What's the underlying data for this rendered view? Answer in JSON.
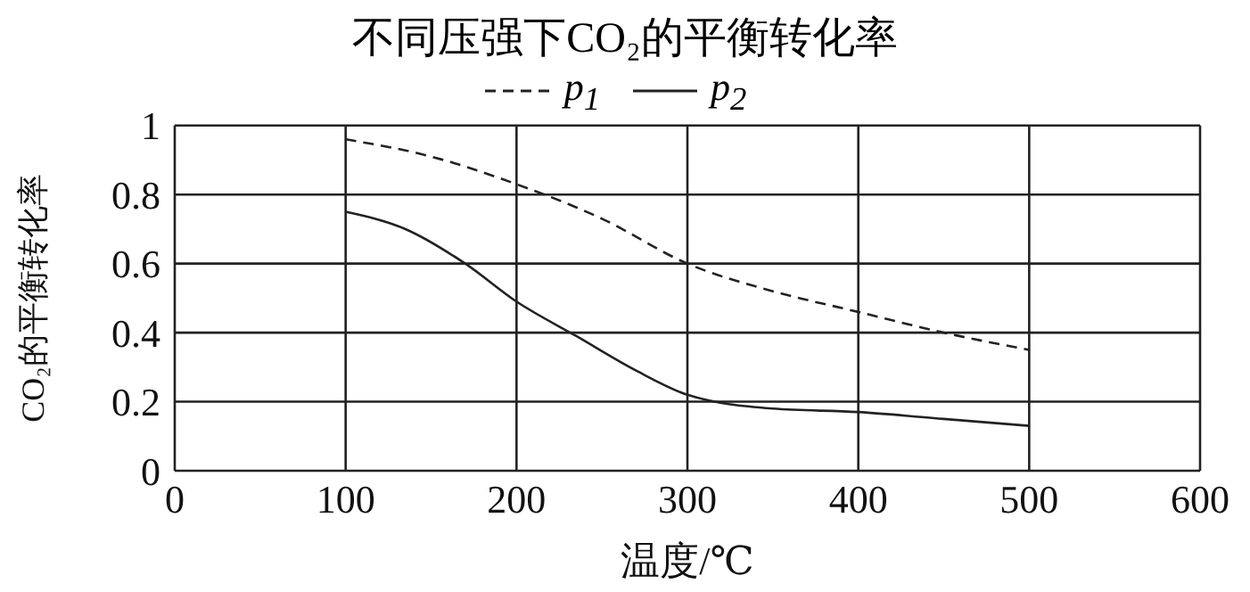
{
  "chart_data": {
    "type": "line",
    "title": "不同压强下CO₂的平衡转化率",
    "xlabel": "温度/℃",
    "ylabel": "CO₂的平衡转化率",
    "xlim": [
      0,
      600
    ],
    "xticks": [
      0,
      100,
      200,
      300,
      400,
      500,
      600
    ],
    "ylim": [
      0,
      1
    ],
    "yticks": [
      0,
      0.2,
      0.4,
      0.6,
      0.8,
      1
    ],
    "grid": true,
    "legend": "top",
    "marker": "none",
    "series": [
      {
        "name": "p$_{1}$",
        "color": "#222222",
        "line_style": "dashed",
        "x": [
          100,
          150,
          200,
          250,
          300,
          350,
          400,
          450,
          500
        ],
        "values": [
          0.96,
          0.91,
          0.83,
          0.73,
          0.6,
          0.52,
          0.46,
          0.4,
          0.35
        ]
      },
      {
        "name": "p$_{2}$",
        "color": "#222222",
        "line_style": "solid",
        "x": [
          100,
          135,
          170,
          200,
          235,
          270,
          300,
          350,
          400,
          450,
          500
        ],
        "values": [
          0.75,
          0.7,
          0.6,
          0.49,
          0.39,
          0.29,
          0.22,
          0.18,
          0.17,
          0.15,
          0.13
        ]
      }
    ]
  }
}
